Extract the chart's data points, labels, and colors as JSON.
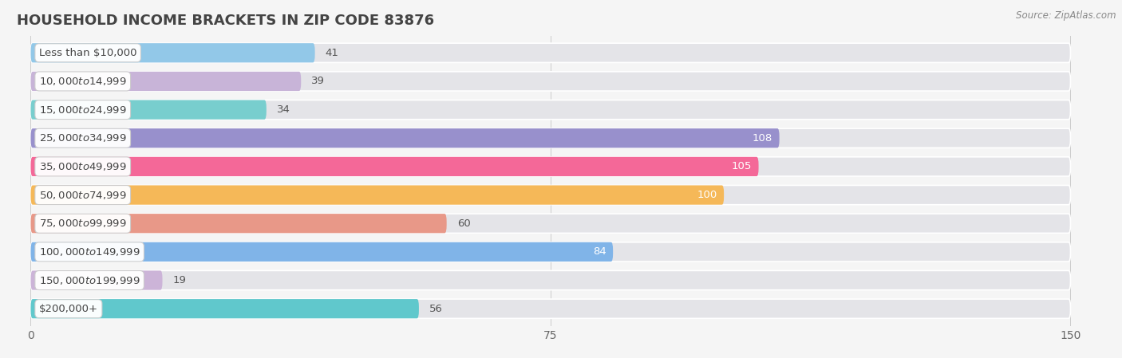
{
  "title": "HOUSEHOLD INCOME BRACKETS IN ZIP CODE 83876",
  "source": "Source: ZipAtlas.com",
  "categories": [
    "Less than $10,000",
    "$10,000 to $14,999",
    "$15,000 to $24,999",
    "$25,000 to $34,999",
    "$35,000 to $49,999",
    "$50,000 to $74,999",
    "$75,000 to $99,999",
    "$100,000 to $149,999",
    "$150,000 to $199,999",
    "$200,000+"
  ],
  "values": [
    41,
    39,
    34,
    108,
    105,
    100,
    60,
    84,
    19,
    56
  ],
  "bar_colors": [
    "#92c8e8",
    "#c8b4d8",
    "#78cece",
    "#9890cc",
    "#f46898",
    "#f5b858",
    "#e89888",
    "#80b4e8",
    "#ccb4d8",
    "#60c8cc"
  ],
  "xlim_data": [
    0,
    150
  ],
  "xticks": [
    0,
    75,
    150
  ],
  "background_color": "#f5f5f5",
  "row_bg_color": "#e4e4e8",
  "title_fontsize": 13,
  "label_fontsize": 9.5,
  "value_fontsize": 9.5,
  "source_fontsize": 8.5,
  "bar_height": 0.68,
  "value_threshold": 75
}
